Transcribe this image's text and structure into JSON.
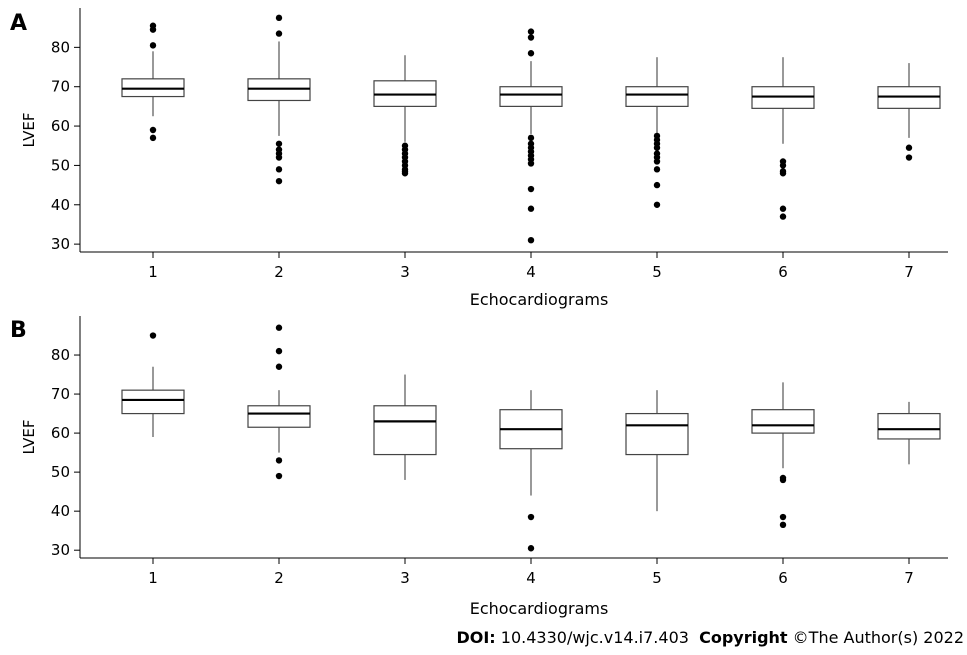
{
  "footer": {
    "doi_label": "DOI:",
    "doi_value": " 10.4330/wjc.v14.i7.403",
    "copyright_label": "Copyright",
    "copyright_value": " ©The Author(s) 2022"
  },
  "chart_data": [
    {
      "type": "box",
      "panel_label": "A",
      "xlabel": "Echocardiograms",
      "ylabel": "LVEF",
      "categories": [
        "1",
        "2",
        "3",
        "4",
        "5",
        "6",
        "7"
      ],
      "yticks": [
        30,
        40,
        50,
        60,
        70,
        80
      ],
      "ylim": [
        28,
        90
      ],
      "grid": false,
      "boxes": [
        {
          "category": "1",
          "whisker_low": 62.5,
          "q1": 67.5,
          "median": 69.5,
          "q3": 72,
          "whisker_high": 79,
          "outliers": [
            57,
            59,
            80.5,
            84.5,
            85.5
          ]
        },
        {
          "category": "2",
          "whisker_low": 57.5,
          "q1": 66.5,
          "median": 69.5,
          "q3": 72,
          "whisker_high": 81.5,
          "outliers": [
            46,
            49,
            52,
            53,
            54,
            55.5,
            83.5,
            87.5
          ]
        },
        {
          "category": "3",
          "whisker_low": 56,
          "q1": 65,
          "median": 68,
          "q3": 71.5,
          "whisker_high": 78,
          "outliers": [
            48,
            48.5,
            49,
            50,
            51,
            52,
            53,
            54,
            55
          ]
        },
        {
          "category": "4",
          "whisker_low": 58,
          "q1": 65,
          "median": 68,
          "q3": 70,
          "whisker_high": 76.5,
          "outliers": [
            31,
            39,
            44,
            50.5,
            51.5,
            52.5,
            53.5,
            54.5,
            55.5,
            57,
            78.5,
            82.5,
            84
          ]
        },
        {
          "category": "5",
          "whisker_low": 58,
          "q1": 65,
          "median": 68,
          "q3": 70,
          "whisker_high": 77.5,
          "outliers": [
            40,
            45,
            49,
            51,
            52,
            53,
            54.5,
            55.5,
            56.5,
            57.5
          ]
        },
        {
          "category": "6",
          "whisker_low": 55.5,
          "q1": 64.5,
          "median": 67.5,
          "q3": 70,
          "whisker_high": 77.5,
          "outliers": [
            37,
            39,
            48,
            48.5,
            50,
            51
          ]
        },
        {
          "category": "7",
          "whisker_low": 57,
          "q1": 64.5,
          "median": 67.5,
          "q3": 70,
          "whisker_high": 76,
          "outliers": [
            52,
            54.5
          ]
        }
      ]
    },
    {
      "type": "box",
      "panel_label": "B",
      "xlabel": "Echocardiograms",
      "ylabel": "LVEF",
      "categories": [
        "1",
        "2",
        "3",
        "4",
        "5",
        "6",
        "7"
      ],
      "yticks": [
        30,
        40,
        50,
        60,
        70,
        80
      ],
      "ylim": [
        28,
        90
      ],
      "grid": false,
      "boxes": [
        {
          "category": "1",
          "whisker_low": 59,
          "q1": 65,
          "median": 68.5,
          "q3": 71,
          "whisker_high": 77,
          "outliers": [
            85
          ]
        },
        {
          "category": "2",
          "whisker_low": 55,
          "q1": 61.5,
          "median": 65,
          "q3": 67,
          "whisker_high": 71,
          "outliers": [
            49,
            53,
            77,
            81,
            87
          ]
        },
        {
          "category": "3",
          "whisker_low": 48,
          "q1": 54.5,
          "median": 63,
          "q3": 67,
          "whisker_high": 75,
          "outliers": []
        },
        {
          "category": "4",
          "whisker_low": 44,
          "q1": 56,
          "median": 61,
          "q3": 66,
          "whisker_high": 71,
          "outliers": [
            30.5,
            38.5
          ]
        },
        {
          "category": "5",
          "whisker_low": 40,
          "q1": 54.5,
          "median": 62,
          "q3": 65,
          "whisker_high": 71,
          "outliers": []
        },
        {
          "category": "6",
          "whisker_low": 51,
          "q1": 60,
          "median": 62,
          "q3": 66,
          "whisker_high": 73,
          "outliers": [
            36.5,
            38.5,
            48,
            48.5
          ]
        },
        {
          "category": "7",
          "whisker_low": 52,
          "q1": 58.5,
          "median": 61,
          "q3": 65,
          "whisker_high": 68,
          "outliers": []
        }
      ]
    }
  ]
}
